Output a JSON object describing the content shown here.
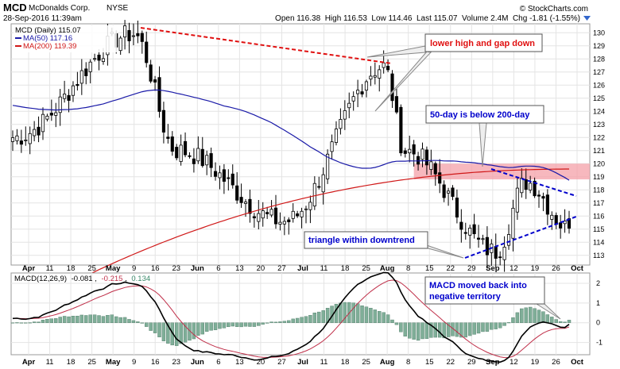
{
  "header": {
    "symbol": "MCD",
    "company": "McDonalds Corp.",
    "exchange": "NYSE",
    "datetime": "28-Sep-2016 11:39am",
    "credit": "© StockCharts.com",
    "quote": "Open 116.38  High 116.53  Low 114.46  Last 115.07  Volume 2.4M  Chg -1.81 (-1.55%)"
  },
  "legend": {
    "price": "MCD (Daily) 115.07",
    "ma50": "MA(50) 117.16",
    "ma200": "MA(200) 119.39"
  },
  "colors": {
    "ma50": "#1a1aa8",
    "ma200": "#d01818",
    "macd": "#000000",
    "signal": "#c0304a",
    "histogram": "#7fae98",
    "grid": "#e4e4e4",
    "zone": "#f4a0a8",
    "annotation_red": "#e01010",
    "annotation_blue": "#0000cc"
  },
  "annotations": {
    "lower_high": "lower high and gap down",
    "fifty_day": "50-day is below 200-day",
    "triangle": "triangle within downtrend",
    "macd_note_line1": "MACD moved back into",
    "macd_note_line2": "negative territory"
  },
  "chart_data": [
    {
      "type": "candlestick",
      "x_labels": [
        "Apr",
        "11",
        "18",
        "25",
        "May",
        "9",
        "16",
        "23",
        "Jun",
        "6",
        "13",
        "20",
        "27",
        "Jul",
        "11",
        "18",
        "25",
        "Aug",
        "8",
        "15",
        "22",
        "29",
        "Sep",
        "12",
        "19",
        "26",
        "Oct"
      ],
      "ylim": [
        112.5,
        130.5
      ],
      "y_ticks": [
        113,
        114,
        115,
        116,
        117,
        118,
        119,
        120,
        121,
        122,
        123,
        124,
        125,
        126,
        127,
        128,
        129,
        130
      ],
      "grid": true,
      "key_points": [
        {
          "label": "start",
          "close": 122.0
        },
        {
          "label": "May high",
          "close": 129.9
        },
        {
          "label": "mid-May low",
          "close": 121.0
        },
        {
          "label": "late-Jun low",
          "close": 115.6
        },
        {
          "label": "Jul lower high",
          "close": 127.4
        },
        {
          "label": "Aug 1 gap down",
          "close": 121.0
        },
        {
          "label": "Aug low",
          "close": 113.3
        },
        {
          "label": "Sep bounce",
          "close": 118.6
        },
        {
          "label": "last",
          "close": 115.07
        }
      ],
      "resistance_zone": [
        118.8,
        120.0
      ],
      "series": [
        {
          "name": "MA(50)",
          "last": 117.16
        },
        {
          "name": "MA(200)",
          "last": 119.39
        }
      ]
    },
    {
      "type": "line",
      "name": "MACD(12,26,9)",
      "values_label": [
        "-0.081",
        "-0.215",
        "0.134"
      ],
      "ylim": [
        -1.5,
        2.4
      ],
      "y_ticks": [
        -1,
        0,
        1,
        2
      ],
      "grid": true,
      "series": [
        {
          "name": "MACD",
          "last": -0.081
        },
        {
          "name": "Signal",
          "last": -0.215
        },
        {
          "name": "Histogram",
          "last": 0.134
        }
      ]
    }
  ]
}
